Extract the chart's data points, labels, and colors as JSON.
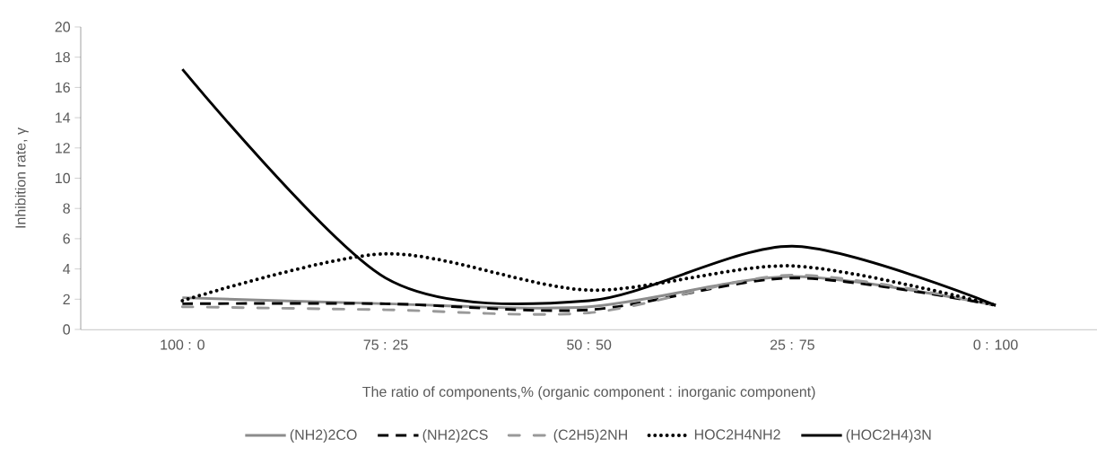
{
  "chart_data": {
    "type": "line",
    "xlabel": "The ratio of components,% (organic component : inorganic component)",
    "ylabel": "Inhibition rate, γ",
    "categories": [
      "100 : 0",
      "75 : 25",
      "50 : 50",
      "25 : 75",
      "0 : 100"
    ],
    "series": [
      {
        "name": "(NH2)2CO",
        "color": "#8c8c8c",
        "line_style": "solid",
        "values": [
          2.1,
          1.7,
          1.5,
          3.5,
          1.6
        ]
      },
      {
        "name": "(NH2)2CS",
        "color": "#000000",
        "line_style": "dashed",
        "values": [
          1.7,
          1.7,
          1.3,
          3.4,
          1.6
        ]
      },
      {
        "name": "(C2H5)2NH",
        "color": "#999999",
        "line_style": "dashdot",
        "values": [
          1.5,
          1.3,
          1.1,
          3.6,
          1.6
        ]
      },
      {
        "name": "HOC2H4NH2",
        "color": "#000000",
        "line_style": "dotted",
        "values": [
          1.9,
          5.0,
          2.6,
          4.2,
          1.6
        ]
      },
      {
        "name": "(HOC2H4)3N",
        "color": "#000000",
        "line_style": "solid",
        "values": [
          17.2,
          3.4,
          1.9,
          5.5,
          1.6
        ]
      }
    ],
    "ylim": [
      0,
      20
    ],
    "yticks": [
      0,
      2,
      4,
      6,
      8,
      10,
      12,
      14,
      16,
      18,
      20
    ],
    "grid": false,
    "legend": "bottom",
    "marker": "none"
  }
}
